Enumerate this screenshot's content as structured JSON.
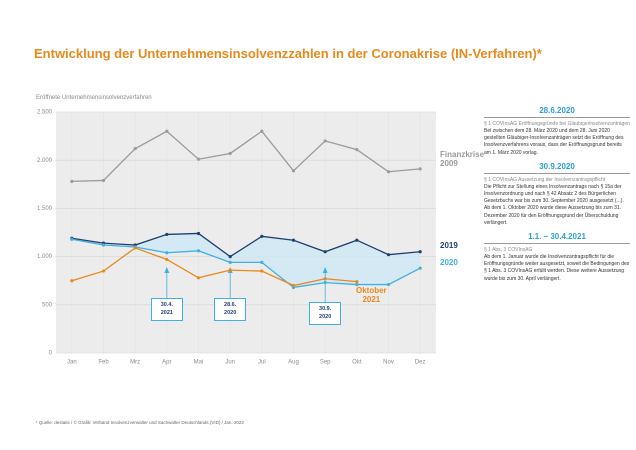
{
  "chart_data": {
    "type": "line",
    "title": "Entwicklung der Unternehmensinsolvenzzahlen in der Coronakrise (IN-Verfahren)*",
    "y_label": "Eröffnete Unternehmensinsolvenzverfahren",
    "categories": [
      "Jan",
      "Feb",
      "Mrz",
      "Apr",
      "Mai",
      "Jun",
      "Jul",
      "Aug",
      "Sep",
      "Okt",
      "Nov",
      "Dez"
    ],
    "series": [
      {
        "name": "Finanzkrise\n2009",
        "color": "#9a9a9a",
        "values": [
          1780,
          1790,
          2120,
          2300,
          2010,
          2070,
          2300,
          1890,
          2200,
          2110,
          1880,
          1910
        ]
      },
      {
        "name": "2019",
        "color": "#1f3f6e",
        "values": [
          1190,
          1140,
          1120,
          1230,
          1240,
          1000,
          1210,
          1170,
          1050,
          1170,
          1020,
          1050
        ]
      },
      {
        "name": "2020",
        "color": "#3fb0e0",
        "values": [
          1180,
          1120,
          1100,
          1040,
          1060,
          940,
          940,
          680,
          730,
          710,
          710,
          880
        ]
      },
      {
        "name": "Oktober\n2021",
        "color": "#e8891c",
        "values": [
          750,
          850,
          1090,
          970,
          780,
          860,
          850,
          700,
          770,
          740,
          null,
          null
        ]
      }
    ],
    "ylim": [
      0,
      2500
    ],
    "yticks": [
      0,
      500,
      {
        "value": 1000,
        "label": "1.000"
      },
      {
        "value": 1500,
        "label": "1.500"
      },
      {
        "value": 2000,
        "label": "2.000"
      },
      {
        "value": 2500,
        "label": "2.500"
      }
    ],
    "grid": true,
    "annotations": [
      "30.4.\n2021",
      "28.6.\n2020",
      "30.9.\n2020"
    ],
    "source": "¹ Quelle: destatis / © Grafik: Verband Insolvenzverwalter und Sachwalter Deutschlands (VID) / Jan. 2022"
  },
  "panel": [
    {
      "heading": "28.6.2020",
      "subheading": "§ 1 COVInsAG Eröffnungsgründe bei Gläubigerinsolvenzanträgen",
      "body": "Bei zwischen dem 28. März 2020 und dem 28. Juni 2020 gestellten Gläubiger-Insolvenzanträgen setzt die Eröffnung des Insolvenzverfahrens voraus, dass der Eröffnungsgrund bereits am 1. März 2020 vorlag."
    },
    {
      "heading": "30.9.2020",
      "subheading": "§ 1 COVInsAG Aussetzung der Insolvenzantragspflicht",
      "body": "Die Pflicht zur Stellung eines Insolvenzantrags nach § 15a der Insolvenzordnung und nach § 42 Absatz 2 des Bürgerlichen Gesetzbuchs war bis zum 30. September 2020 ausgesetzt (...). Ab dem 1. Oktober 2020 wurde diese Aussetzung bis zum 31. Dezember 2020 für den Eröffnungsgrund der Überschuldung verlängert."
    },
    {
      "heading": "1.1. – 30.4.2021",
      "subheading": "§ 1 Abs. 3 COVInsAG",
      "body": "Ab dem 1. Januar wurde die Insolvenzantragspflicht für die Eröffnungsgründe weiter ausgesetzt, soweit die Bedingungen des § 1 Abs. 3 COVInsAG erfüllt werden. Diese weitere Aussetzung wurde bis zum 30. April verlängert."
    }
  ]
}
